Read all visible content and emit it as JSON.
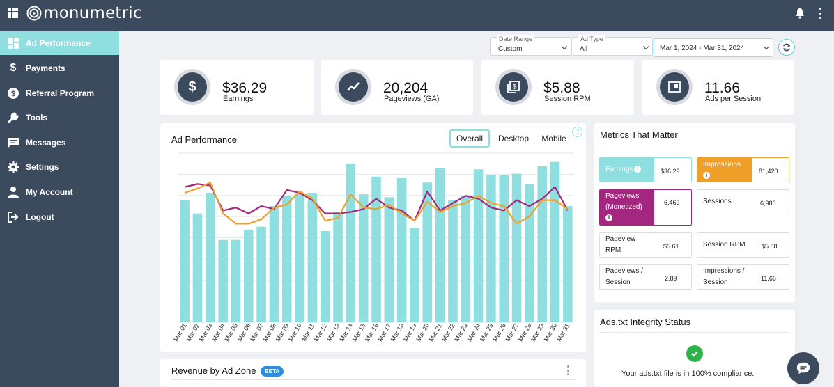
{
  "brand": {
    "name": "monumetric"
  },
  "topbar": {
    "apps_icon": "grid-icon",
    "notifications_icon": "bell-icon",
    "menu_icon": "kebab-icon"
  },
  "sidebar": {
    "items": [
      {
        "label": "Ad Performance",
        "icon": "dashboard-icon",
        "active": true
      },
      {
        "label": "Payments",
        "icon": "dollar-icon"
      },
      {
        "label": "Referral Program",
        "icon": "dollar-circle-icon"
      },
      {
        "label": "Tools",
        "icon": "wrench-icon"
      },
      {
        "label": "Messages",
        "icon": "message-icon"
      },
      {
        "label": "Settings",
        "icon": "gear-icon"
      },
      {
        "label": "My Account",
        "icon": "person-icon"
      },
      {
        "label": "Logout",
        "icon": "logout-icon"
      }
    ]
  },
  "filters": {
    "date_range": {
      "label": "Date Range",
      "value": "Custom"
    },
    "ad_type": {
      "label": "Ad Type",
      "value": "All"
    },
    "dates": "Mar 1, 2024 - Mar 31, 2024"
  },
  "stats": [
    {
      "value": "$36.29",
      "label": "Earnings",
      "icon": "dollar-icon"
    },
    {
      "value": "20,204",
      "label": "Pageviews (GA)",
      "icon": "trend-icon"
    },
    {
      "value": "$5.88",
      "label": "Session RPM",
      "icon": "dollar-stack-icon"
    },
    {
      "value": "11.66",
      "label": "Ads per Session",
      "icon": "ad-window-icon"
    }
  ],
  "ad_performance": {
    "title": "Ad Performance",
    "tabs": [
      "Overall",
      "Desktop",
      "Mobile"
    ],
    "active_tab": "Overall",
    "help": "?"
  },
  "chart_data": {
    "type": "bar",
    "categories": [
      "Mar 01",
      "Mar 02",
      "Mar 03",
      "Mar 04",
      "Mar 05",
      "Mar 06",
      "Mar 07",
      "Mar 08",
      "Mar 09",
      "Mar 10",
      "Mar 11",
      "Mar 12",
      "Mar 13",
      "Mar 14",
      "Mar 15",
      "Mar 16",
      "Mar 17",
      "Mar 18",
      "Mar 19",
      "Mar 20",
      "Mar 21",
      "Mar 22",
      "Mar 23",
      "Mar 24",
      "Mar 25",
      "Mar 26",
      "Mar 27",
      "Mar 28",
      "Mar 29",
      "Mar 30",
      "Mar 31"
    ],
    "series": [
      {
        "values": [
          0.83,
          0.74,
          0.88,
          0.56,
          0.56,
          0.63,
          0.65,
          0.79,
          0.86,
          0.87,
          0.88,
          0.62,
          0.75,
          1.08,
          0.87,
          0.99,
          0.85,
          0.98,
          0.64,
          0.95,
          1.05,
          0.83,
          0.86,
          1.04,
          1.0,
          1.0,
          1.01,
          0.94,
          1.06,
          1.09,
          0.79
        ],
        "color": "#8fdfe0"
      },
      {
        "values": [
          0.92,
          0.94,
          0.93,
          0.76,
          0.78,
          0.74,
          0.79,
          0.77,
          0.9,
          0.88,
          0.83,
          0.74,
          0.74,
          0.75,
          0.77,
          0.84,
          0.78,
          0.76,
          0.69,
          0.89,
          0.76,
          0.81,
          0.86,
          0.84,
          0.78,
          0.76,
          0.83,
          0.79,
          0.84,
          0.92,
          0.76
        ],
        "color": "#a3277e"
      },
      {
        "values": [
          0.88,
          0.91,
          0.95,
          0.74,
          0.67,
          0.67,
          0.7,
          0.78,
          0.8,
          0.89,
          0.84,
          0.69,
          0.71,
          0.87,
          0.78,
          0.77,
          0.8,
          0.74,
          0.69,
          0.82,
          0.75,
          0.79,
          0.81,
          0.86,
          0.81,
          0.79,
          0.67,
          0.72,
          0.83,
          0.83,
          0.77
        ],
        "color": "#f0a028"
      }
    ],
    "ylim": [
      0,
      1.15
    ],
    "grid": true
  },
  "metrics": {
    "title": "Metrics That Matter",
    "earnings": {
      "label": "Earnings",
      "value": "$36.29"
    },
    "impressions": {
      "label": "Impressions",
      "value": "81,420"
    },
    "pageviews_monetized": {
      "label_line1": "Pageviews",
      "label_line2": "(Monetized)",
      "value": "6,469"
    },
    "sessions": {
      "label": "Sessions",
      "value": "6,980"
    },
    "pageview_rpm": {
      "label_line1": "Pageview",
      "label_line2": "RPM",
      "value": "$5.61"
    },
    "session_rpm": {
      "label": "Session RPM",
      "value": "$5.88"
    },
    "pageviews_per_session": {
      "label_line1": "Pageviews /",
      "label_line2": "Session",
      "value": "2.89"
    },
    "impressions_per_session": {
      "label_line1": "Impressions /",
      "label_line2": "Session",
      "value": "11.66"
    },
    "info": "i"
  },
  "ads_txt": {
    "title": "Ads.txt Integrity Status",
    "message": "Your ads.txt file is in 100% compliance."
  },
  "revenue": {
    "title": "Revenue by Ad Zone",
    "badge": "BETA"
  },
  "colors": {
    "teal": "#8fdfe0",
    "navy": "#3c4a5e",
    "purple": "#a3277e",
    "orange": "#f0a028",
    "green": "#2eb34a"
  }
}
